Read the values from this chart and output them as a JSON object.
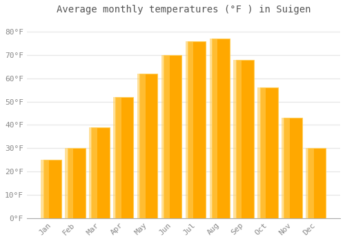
{
  "title": "Average monthly temperatures (°F ) in Suigen",
  "months": [
    "Jan",
    "Feb",
    "Mar",
    "Apr",
    "May",
    "Jun",
    "Jul",
    "Aug",
    "Sep",
    "Oct",
    "Nov",
    "Dec"
  ],
  "values": [
    25,
    30,
    39,
    52,
    62,
    70,
    76,
    77,
    68,
    56,
    43,
    30
  ],
  "bar_color_main": "#FFA800",
  "bar_color_light": "#FFCC55",
  "background_color": "#FFFFFF",
  "plot_bg_color": "#FFFFFF",
  "grid_color": "#E8E8E8",
  "text_color": "#888888",
  "title_color": "#555555",
  "spine_color": "#AAAAAA",
  "ylim": [
    0,
    85
  ],
  "yticks": [
    0,
    10,
    20,
    30,
    40,
    50,
    60,
    70,
    80
  ],
  "ytick_labels": [
    "0°F",
    "10°F",
    "20°F",
    "30°F",
    "40°F",
    "50°F",
    "60°F",
    "70°F",
    "80°F"
  ],
  "title_fontsize": 10,
  "tick_fontsize": 8,
  "font_family": "monospace",
  "bar_width": 0.75
}
